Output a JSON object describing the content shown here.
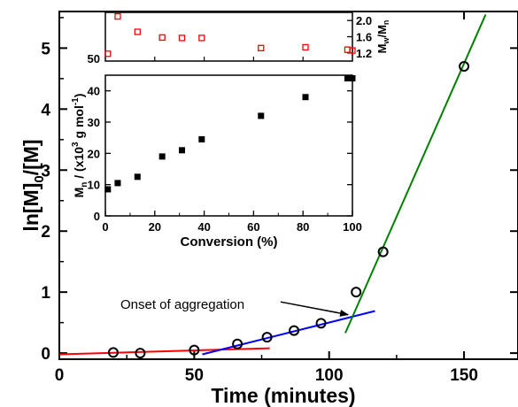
{
  "chart_data": [
    {
      "type": "scatter",
      "xlabel": "Time (minutes)",
      "ylabel": "ln[M]0/[M]",
      "ylabel_parts": {
        "base": "ln[M]",
        "sub": "0",
        "tail": "/[M]"
      },
      "xlim": [
        0,
        170
      ],
      "ylim": [
        -0.1,
        5.6
      ],
      "x_ticks": [
        0,
        50,
        100,
        150
      ],
      "y_ticks": [
        0,
        1,
        2,
        3,
        4,
        5
      ],
      "series": [
        {
          "marker": "open-circle",
          "color": "#000000",
          "x": [
            20,
            30,
            50,
            66,
            77,
            87,
            97,
            110,
            120,
            150
          ],
          "y": [
            0.01,
            0.0,
            0.05,
            0.15,
            0.26,
            0.37,
            0.49,
            1.0,
            1.66,
            4.7
          ]
        }
      ],
      "fit_lines": [
        {
          "color": "#ff0000",
          "x": [
            0,
            78
          ],
          "y": [
            -0.02,
            0.08
          ]
        },
        {
          "color": "#0000ff",
          "x": [
            53,
            117
          ],
          "y": [
            -0.02,
            0.69
          ]
        },
        {
          "color": "#008000",
          "x": [
            106,
            158
          ],
          "y": [
            0.33,
            5.55
          ]
        }
      ],
      "annotation": {
        "text": "Onset of aggregation",
        "arrow_from": [
          82,
          0.84
        ],
        "arrow_to": [
          107,
          0.63
        ]
      }
    },
    {
      "type": "scatter",
      "role": "inset-bottom",
      "xlabel": "Conversion (%)",
      "ylabel": "Mn / (x10^3 g mol^-1)",
      "ylabel_parts": {
        "a": "M",
        "a_sub": "n",
        "b": " / (x10",
        "b_sup": "3",
        "c": " g mol",
        "c_sup": "-1",
        "d": ")"
      },
      "xlim": [
        0,
        100
      ],
      "ylim": [
        0,
        45
      ],
      "x_ticks": [
        0,
        20,
        40,
        60,
        80,
        100
      ],
      "y_ticks": [
        0,
        10,
        20,
        30,
        40
      ],
      "series": [
        {
          "marker": "filled-square",
          "color": "#000000",
          "x": [
            1,
            5,
            13,
            23,
            31,
            39,
            63,
            81,
            98,
            100
          ],
          "y": [
            8.5,
            10.5,
            12.5,
            19,
            21,
            24.5,
            32,
            38,
            44,
            44
          ]
        }
      ]
    },
    {
      "type": "scatter",
      "role": "inset-top",
      "ylabel": "Mw/Mn",
      "ylabel_parts": {
        "a": "M",
        "a_sub": "w",
        "b": "/M",
        "b_sub": "n"
      },
      "xlim": [
        0,
        100
      ],
      "ylim": [
        1.0,
        2.2
      ],
      "y_ticks": [
        1.2,
        1.6,
        2.0
      ],
      "extra_left_label": "50",
      "series": [
        {
          "marker": "open-square",
          "color": "#ff0000",
          "x": [
            1,
            5,
            13,
            23,
            31,
            39,
            63,
            81,
            98,
            100
          ],
          "y": [
            1.18,
            2.1,
            1.72,
            1.58,
            1.57,
            1.57,
            1.32,
            1.34,
            1.28,
            1.26
          ]
        }
      ]
    }
  ]
}
